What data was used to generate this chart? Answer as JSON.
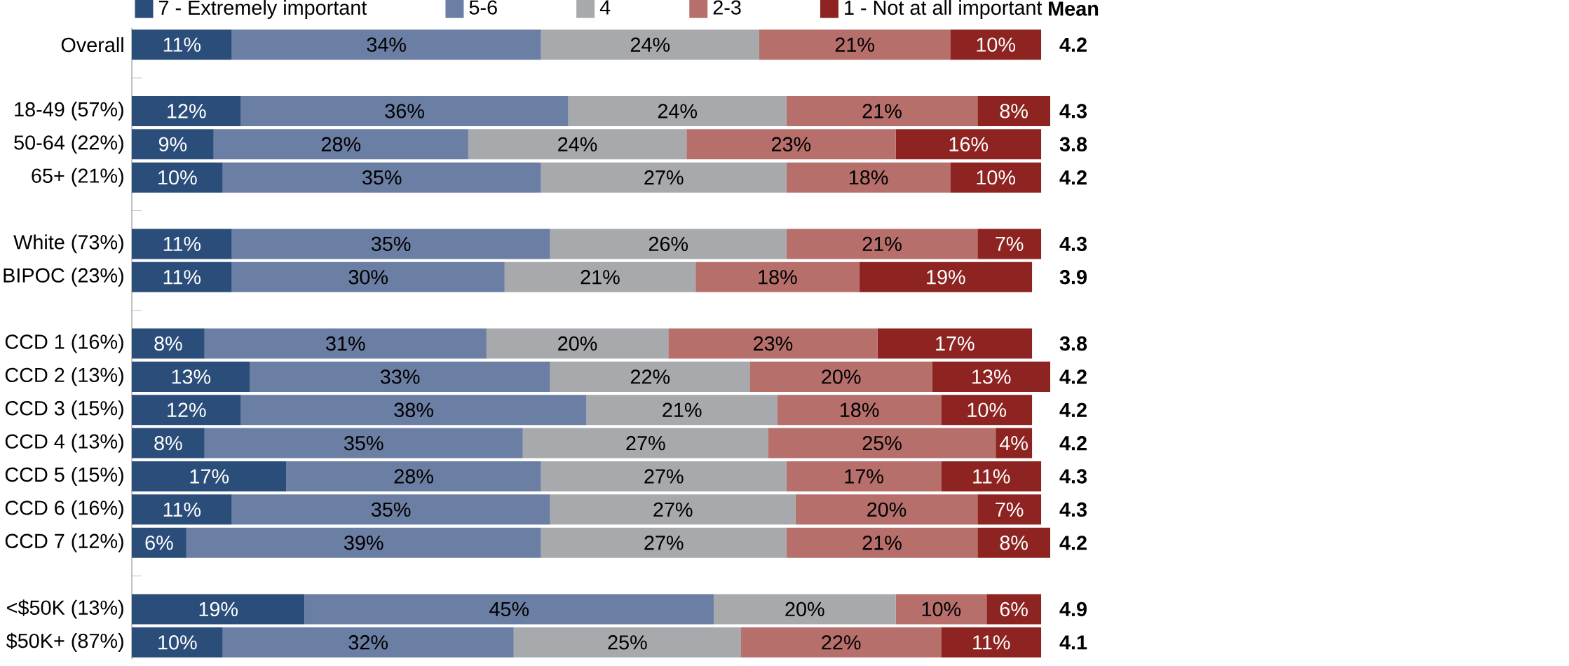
{
  "chart_data": {
    "type": "bar",
    "orientation": "horizontal",
    "stacked": true,
    "legend": "top",
    "categories": [
      "Overall",
      null,
      "18-49 (57%)",
      "50-64 (22%)",
      "65+ (21%)",
      null,
      "White (73%)",
      "BIPOC (23%)",
      null,
      "CCD 1 (16%)",
      "CCD 2 (13%)",
      "CCD 3 (15%)",
      "CCD 4 (13%)",
      "CCD 5 (15%)",
      "CCD 6 (16%)",
      "CCD 7 (12%)",
      null,
      "<$50K (13%)",
      "$50K+ (87%)"
    ],
    "series": [
      {
        "name": "7 - Extremely important",
        "color": "#2a4d7a",
        "values": [
          11,
          null,
          12,
          9,
          10,
          null,
          11,
          11,
          null,
          8,
          13,
          12,
          8,
          17,
          11,
          6,
          null,
          19,
          10
        ],
        "value_labels": [
          "11%",
          null,
          "12%",
          "9%",
          "10%",
          null,
          "11%",
          "11%",
          null,
          "8%",
          "13%",
          "12%",
          "8%",
          "17%",
          "11%",
          "6%",
          null,
          "19%",
          "10%"
        ]
      },
      {
        "name": "5-6",
        "color": "#6b7ea3",
        "values": [
          34,
          null,
          36,
          28,
          35,
          null,
          35,
          30,
          null,
          31,
          33,
          38,
          35,
          28,
          35,
          39,
          null,
          45,
          32
        ],
        "value_labels": [
          "34%",
          null,
          "36%",
          "28%",
          "35%",
          null,
          "35%",
          "30%",
          null,
          "31%",
          "33%",
          "38%",
          "35%",
          "28%",
          "35%",
          "39%",
          null,
          "45%",
          "32%"
        ]
      },
      {
        "name": "4",
        "color": "#a8a9ad",
        "values": [
          24,
          null,
          24,
          24,
          27,
          null,
          26,
          21,
          null,
          20,
          22,
          21,
          27,
          27,
          27,
          27,
          null,
          20,
          25
        ],
        "value_labels": [
          "24%",
          null,
          "24%",
          "24%",
          "27%",
          null,
          "26%",
          "21%",
          null,
          "20%",
          "22%",
          "21%",
          "27%",
          "27%",
          "27%",
          "27%",
          null,
          "20%",
          "25%"
        ]
      },
      {
        "name": "2-3",
        "color": "#b76f6b",
        "values": [
          21,
          null,
          21,
          23,
          18,
          null,
          21,
          18,
          null,
          23,
          20,
          18,
          25,
          17,
          20,
          21,
          null,
          10,
          22
        ],
        "value_labels": [
          "21%",
          null,
          "21%",
          "23%",
          "18%",
          null,
          "21%",
          "18%",
          null,
          "23%",
          "20%",
          "18%",
          "25%",
          "17%",
          "20%",
          "21%",
          null,
          "10%",
          "22%"
        ]
      },
      {
        "name": "1 - Not at all important",
        "color": "#8e2421",
        "values": [
          10,
          null,
          8,
          16,
          10,
          null,
          7,
          19,
          null,
          17,
          13,
          10,
          4,
          11,
          7,
          8,
          null,
          6,
          11
        ],
        "value_labels": [
          "10%",
          null,
          "8%",
          "16%",
          "10%",
          null,
          "7%",
          "19%",
          null,
          "17%",
          "13%",
          "10%",
          "4%",
          "11%",
          "7%",
          "8%",
          null,
          "6%",
          "11%"
        ]
      }
    ],
    "annotations": [
      "Mean",
      "4.2",
      "4.3",
      "3.8",
      "4.2",
      "4.3",
      "3.9",
      "3.8",
      "4.2",
      "4.2",
      "4.2",
      "4.3",
      "4.3",
      "4.2",
      "4.9",
      "4.1"
    ]
  }
}
